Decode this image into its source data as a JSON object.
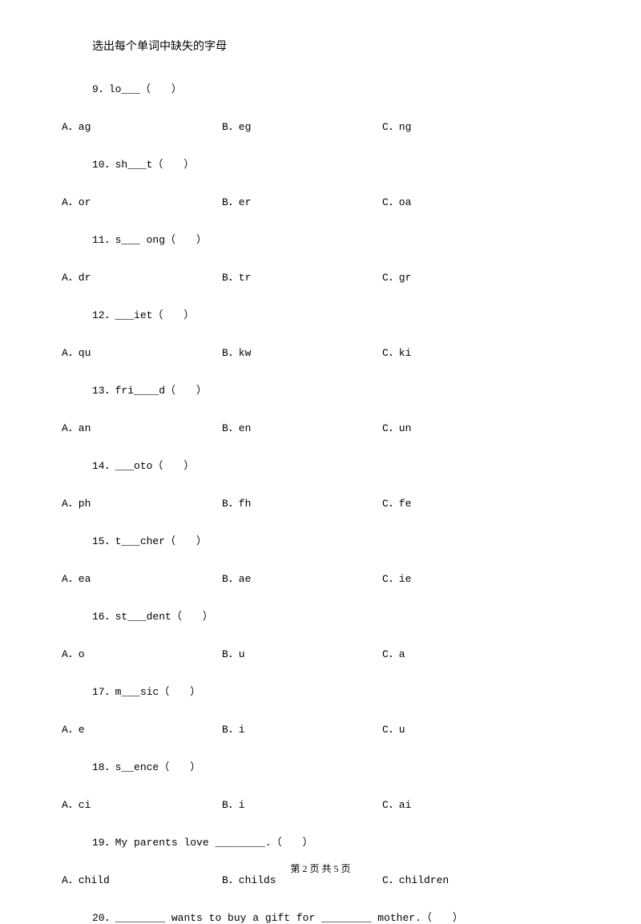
{
  "section_title": "选出每个单词中缺失的字母",
  "questions": [
    {
      "number": "9",
      "text": "lo___（　　）",
      "options": {
        "a": "A．ag",
        "b": "B．eg",
        "c": "C．ng"
      }
    },
    {
      "number": "10",
      "text": "sh___t（　　）",
      "options": {
        "a": "A．or",
        "b": "B．er",
        "c": "C．oa"
      }
    },
    {
      "number": "11",
      "text": "s___ ong（　　）",
      "options": {
        "a": "A．dr",
        "b": "B．tr",
        "c": "C．gr"
      }
    },
    {
      "number": "12",
      "text": "___iet（　　）",
      "options": {
        "a": "A．qu",
        "b": "B．kw",
        "c": "C．ki"
      }
    },
    {
      "number": "13",
      "text": "fri____d（　　）",
      "options": {
        "a": "A．an",
        "b": "B．en",
        "c": "C．un"
      }
    },
    {
      "number": "14",
      "text": "___oto（　　）",
      "options": {
        "a": "A．ph",
        "b": "B．fh",
        "c": "C．fe"
      }
    },
    {
      "number": "15",
      "text": "t___cher（　　）",
      "options": {
        "a": "A．ea",
        "b": "B．ae",
        "c": "C．ie"
      }
    },
    {
      "number": "16",
      "text": "st___dent（　　）",
      "options": {
        "a": "A．o",
        "b": "B．u",
        "c": "C．a"
      }
    },
    {
      "number": "17",
      "text": "m___sic（　　）",
      "options": {
        "a": "A．e",
        "b": "B．i",
        "c": "C．u"
      }
    },
    {
      "number": "18",
      "text": "s__ence（　　）",
      "options": {
        "a": "A．ci",
        "b": "B．i",
        "c": "C．ai"
      }
    },
    {
      "number": "19",
      "text": "My parents love ________.（　　）",
      "options": {
        "a": "A．child",
        "b": "B．childs",
        "c": "C．children"
      }
    },
    {
      "number": "20",
      "text": "________ wants to buy a gift for ________ mother.（　　）",
      "options": null
    }
  ],
  "footer": "第 2 页 共 5 页"
}
